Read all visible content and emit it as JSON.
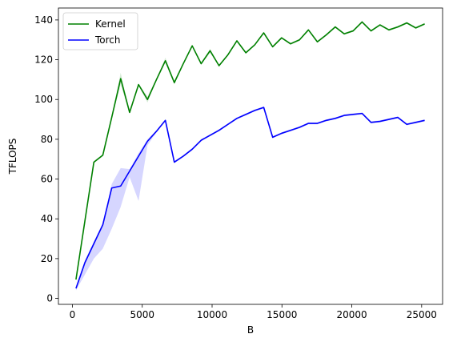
{
  "chart_data": {
    "type": "line",
    "xlabel": "B",
    "ylabel": "TFLOPS",
    "xlim": [
      -1000,
      26500
    ],
    "ylim": [
      -3,
      146
    ],
    "xticks": [
      0,
      5000,
      10000,
      15000,
      20000,
      25000
    ],
    "yticks": [
      0,
      20,
      40,
      60,
      80,
      100,
      120,
      140
    ],
    "grid": false,
    "legend_placement": "top-left",
    "series": [
      {
        "name": "Kernel",
        "color": "#008000",
        "x": [
          256,
          896,
          1536,
          2176,
          2816,
          3456,
          4096,
          4736,
          5376,
          6016,
          6656,
          7296,
          7936,
          8576,
          9216,
          9856,
          10496,
          11136,
          11776,
          12416,
          13056,
          13696,
          14336,
          14976,
          15616,
          16256,
          16896,
          17536,
          18176,
          18816,
          19456,
          20096,
          20736,
          21376,
          22016,
          22656,
          23296,
          23936,
          24576,
          25216
        ],
        "values": [
          9.5,
          39,
          68.5,
          72,
          91,
          110.5,
          93.5,
          107.5,
          100,
          110,
          119.5,
          108.5,
          118,
          127,
          118,
          124.5,
          117,
          122.5,
          129.5,
          123.5,
          127.5,
          133.5,
          126.5,
          131,
          128,
          130,
          135,
          129,
          132.5,
          136.5,
          133,
          134.5,
          139,
          134.5,
          137.5,
          135,
          136.5,
          138.5,
          136,
          138
        ],
        "band_lower": [
          9,
          38.5,
          68,
          71.5,
          90.5,
          107.5,
          93,
          107,
          98.5,
          109.5,
          118.5,
          107.5,
          117.5,
          126.5,
          117.5,
          123.5,
          116.5,
          122,
          129,
          123,
          127,
          133,
          126,
          130.5,
          127.5,
          129.5,
          134.5,
          128.5,
          132,
          136,
          132.5,
          134,
          138.5,
          134,
          137,
          134.5,
          136,
          138,
          135.5,
          137.5
        ],
        "band_upper": [
          10,
          39.5,
          69,
          72.5,
          91.5,
          113.5,
          94,
          108,
          101.5,
          110.5,
          121,
          109.5,
          118.5,
          127.5,
          118.5,
          125.5,
          117.5,
          123,
          130,
          124,
          128,
          134,
          127,
          131.5,
          128.5,
          130.5,
          135.5,
          129.5,
          133,
          137,
          133.5,
          135,
          139.5,
          135,
          138,
          135.5,
          137,
          139,
          136.5,
          138.5
        ]
      },
      {
        "name": "Torch",
        "color": "#0000ff",
        "x": [
          256,
          896,
          1536,
          2176,
          2816,
          3456,
          4096,
          4736,
          5376,
          6016,
          6656,
          7296,
          7936,
          8576,
          9216,
          9856,
          10496,
          11136,
          11776,
          12416,
          13056,
          13696,
          14336,
          14976,
          15616,
          16256,
          16896,
          17536,
          18176,
          18816,
          19456,
          20096,
          20736,
          21376,
          22016,
          22656,
          23296,
          23936,
          24576,
          25216
        ],
        "values": [
          5,
          18,
          27.5,
          37,
          55.5,
          56.5,
          64,
          71.5,
          79,
          84,
          89.5,
          68.5,
          71.5,
          75,
          79.5,
          82,
          84.5,
          87.5,
          90.5,
          92.5,
          94.5,
          96,
          81,
          83,
          84.5,
          86,
          88,
          88,
          89.5,
          90.5,
          92,
          92.5,
          93,
          88.5,
          89,
          90,
          91,
          87.5,
          88.5,
          89.5
        ],
        "band_lower": [
          4,
          12,
          20,
          25,
          35,
          46,
          61,
          49,
          77,
          83.5,
          89,
          68,
          71,
          74.5,
          79,
          81.5,
          84,
          87,
          90,
          92,
          94,
          95.5,
          80.5,
          82.5,
          84,
          85.5,
          87.5,
          87.5,
          89,
          90,
          91.5,
          92,
          92.5,
          88,
          88.5,
          89.5,
          90.5,
          87,
          88,
          89
        ],
        "band_upper": [
          6,
          19,
          28.5,
          38,
          57.5,
          65.5,
          65,
          73,
          80,
          84.5,
          90,
          69,
          72,
          75.5,
          80,
          82.5,
          85,
          88,
          91,
          93,
          95,
          96.5,
          81.5,
          83.5,
          85,
          86.5,
          88.5,
          88.5,
          90,
          91,
          92.5,
          93,
          93.5,
          89,
          89.5,
          90.5,
          91.5,
          88,
          89,
          90
        ]
      }
    ]
  }
}
